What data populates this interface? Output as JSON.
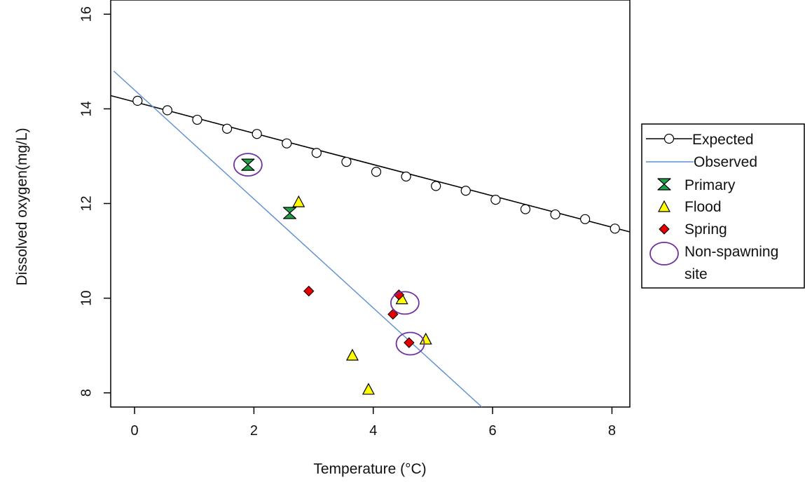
{
  "chart_data": {
    "type": "scatter",
    "title": "",
    "xlabel": "Temperature (°C)",
    "ylabel": "Dissolved oxygen(mg/L)",
    "xlim": [
      -0.4,
      8.3
    ],
    "ylim": [
      7.7,
      16.3
    ],
    "xticks": [
      0,
      2,
      4,
      6,
      8
    ],
    "yticks": [
      8,
      10,
      12,
      14,
      16
    ],
    "grid": false,
    "legend_position": "right",
    "series": [
      {
        "name": "Expected",
        "kind": "line+points",
        "color": "#000000",
        "line": {
          "x": [
            -0.4,
            8.3
          ],
          "y": [
            14.28,
            11.4
          ]
        },
        "points": [
          {
            "x": 0.05,
            "y": 14.17
          },
          {
            "x": 0.55,
            "y": 13.97
          },
          {
            "x": 1.05,
            "y": 13.77
          },
          {
            "x": 1.55,
            "y": 13.58
          },
          {
            "x": 2.05,
            "y": 13.47
          },
          {
            "x": 2.55,
            "y": 13.27
          },
          {
            "x": 3.05,
            "y": 13.07
          },
          {
            "x": 3.55,
            "y": 12.88
          },
          {
            "x": 4.05,
            "y": 12.67
          },
          {
            "x": 4.55,
            "y": 12.57
          },
          {
            "x": 5.05,
            "y": 12.37
          },
          {
            "x": 5.55,
            "y": 12.27
          },
          {
            "x": 6.05,
            "y": 12.08
          },
          {
            "x": 6.55,
            "y": 11.88
          },
          {
            "x": 7.05,
            "y": 11.77
          },
          {
            "x": 7.55,
            "y": 11.67
          },
          {
            "x": 8.05,
            "y": 11.47
          }
        ]
      },
      {
        "name": "Observed",
        "kind": "line",
        "color": "#5b8fd4",
        "line": {
          "x": [
            -0.35,
            5.82
          ],
          "y": [
            14.8,
            7.7
          ]
        }
      },
      {
        "name": "Primary",
        "kind": "points",
        "marker": "hourglass",
        "color": "#1fa34a",
        "points": [
          {
            "x": 1.9,
            "y": 12.82
          },
          {
            "x": 2.6,
            "y": 11.8
          }
        ]
      },
      {
        "name": "Flood",
        "kind": "points",
        "marker": "triangle",
        "color": "#ffff00",
        "points": [
          {
            "x": 2.75,
            "y": 12.02
          },
          {
            "x": 4.48,
            "y": 9.97
          },
          {
            "x": 4.88,
            "y": 9.12
          },
          {
            "x": 3.65,
            "y": 8.78
          },
          {
            "x": 3.92,
            "y": 8.06
          }
        ]
      },
      {
        "name": "Spring",
        "kind": "points",
        "marker": "diamond",
        "color": "#e60000",
        "points": [
          {
            "x": 2.92,
            "y": 10.15
          },
          {
            "x": 4.43,
            "y": 10.07
          },
          {
            "x": 4.33,
            "y": 9.66
          },
          {
            "x": 4.6,
            "y": 9.06
          }
        ]
      },
      {
        "name": "Non-spawning site",
        "kind": "points",
        "marker": "circle-outline",
        "color": "#7030a0",
        "points": [
          {
            "x": 1.9,
            "y": 12.82
          },
          {
            "x": 4.53,
            "y": 9.9
          },
          {
            "x": 4.62,
            "y": 9.04
          }
        ]
      }
    ],
    "legend": {
      "entries": [
        "Expected",
        "Observed",
        "Primary",
        "Flood",
        "Spring",
        "Non-spawning",
        "site"
      ]
    }
  }
}
